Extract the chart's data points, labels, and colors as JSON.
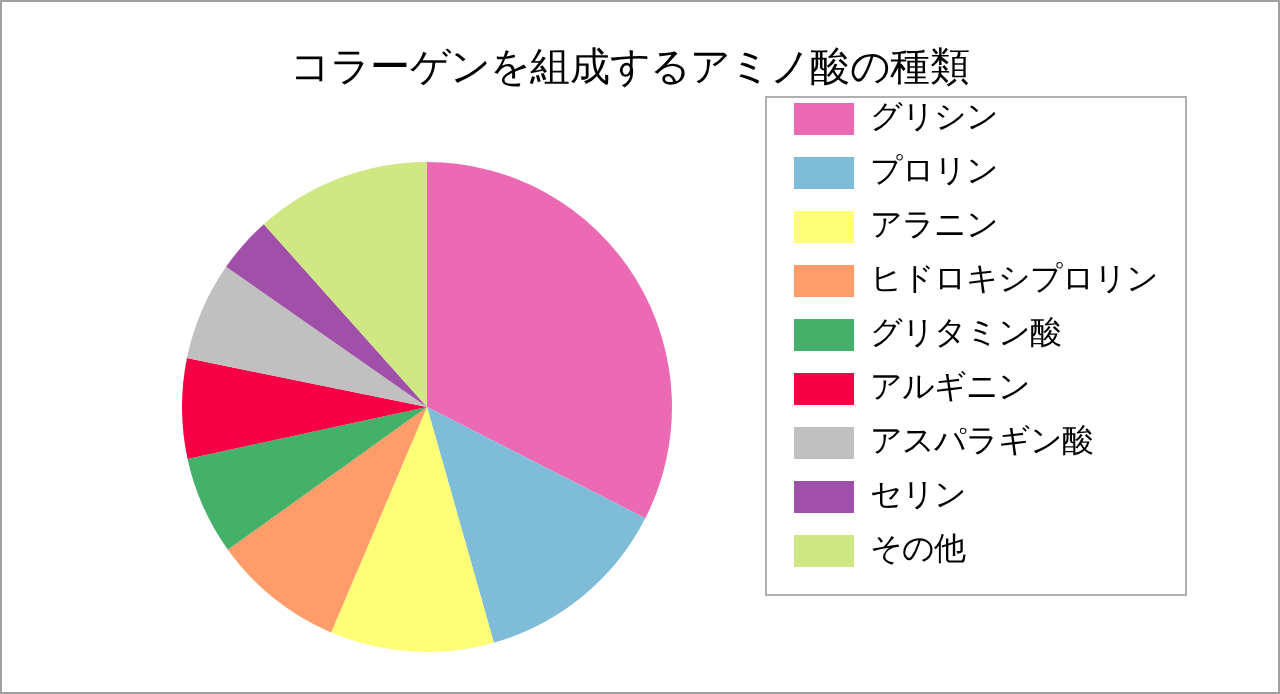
{
  "chart_data": {
    "type": "pie",
    "title": "コラーゲンを組成するアミノ酸の種類",
    "categories": [
      "グリシン",
      "プロリン",
      "アラニン",
      "ヒドロキシプロリン",
      "グリタミン酸",
      "アルギニン",
      "アスパラギン酸",
      "セリン",
      "その他"
    ],
    "values": [
      32.5,
      13.1,
      10.8,
      8.7,
      6.5,
      6.6,
      6.5,
      3.7,
      11.6
    ],
    "colors": [
      "#ec6ab4",
      "#7fbcd8",
      "#ffff77",
      "#ff9c6a",
      "#45b06a",
      "#f80046",
      "#c0c0c0",
      "#a050a8",
      "#d0e884"
    ],
    "legend": "right"
  }
}
